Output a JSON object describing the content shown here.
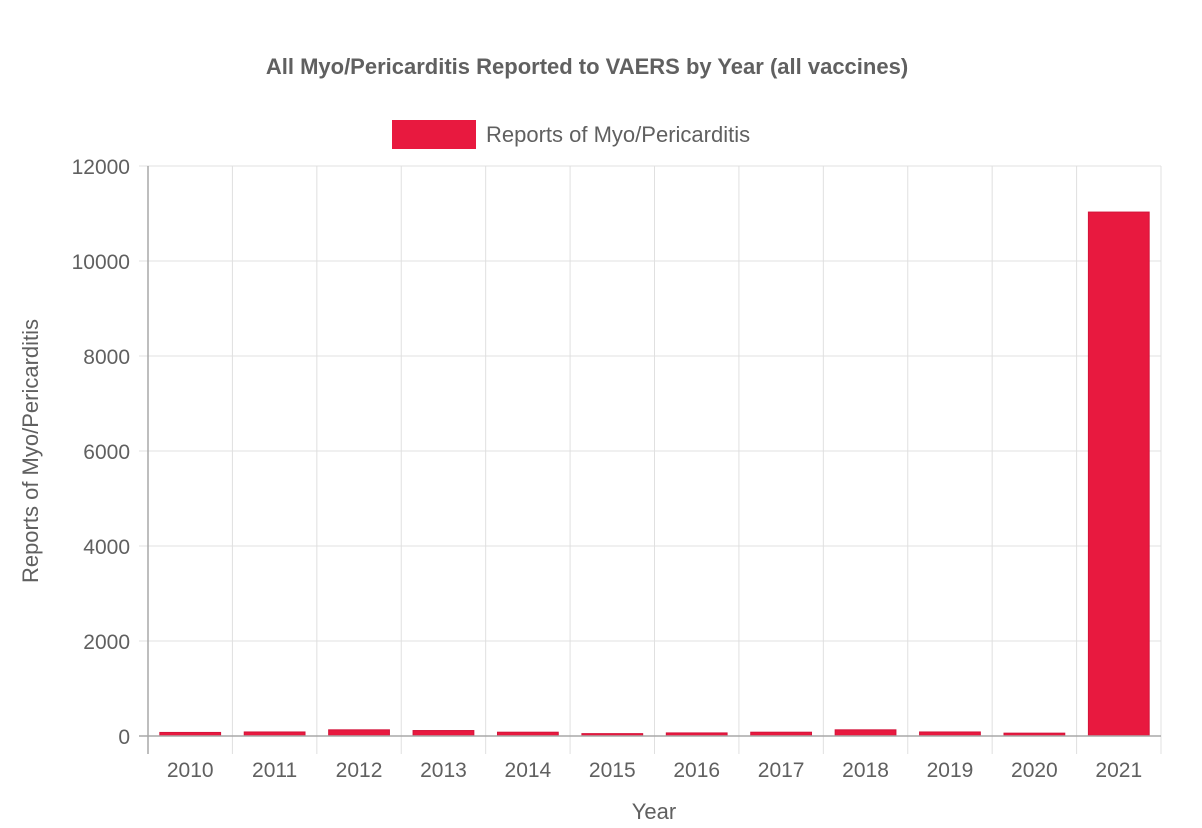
{
  "chart_data": {
    "type": "bar",
    "title": "All Myo/Pericarditis Reported to VAERS by Year (all vaccines)",
    "xlabel": "Year",
    "ylabel": "Reports of Myo/Pericarditis",
    "categories": [
      "2010",
      "2011",
      "2012",
      "2013",
      "2014",
      "2015",
      "2016",
      "2017",
      "2018",
      "2019",
      "2020",
      "2021"
    ],
    "series": [
      {
        "name": "Reports of Myo/Pericarditis",
        "values": [
          75,
          85,
          130,
          115,
          80,
          50,
          65,
          80,
          130,
          85,
          60,
          11030
        ],
        "color": "#e8193f"
      }
    ],
    "ylim": [
      0,
      12000
    ],
    "yticks": [
      0,
      2000,
      4000,
      6000,
      8000,
      10000,
      12000
    ],
    "grid": true,
    "legend": "top-center"
  }
}
